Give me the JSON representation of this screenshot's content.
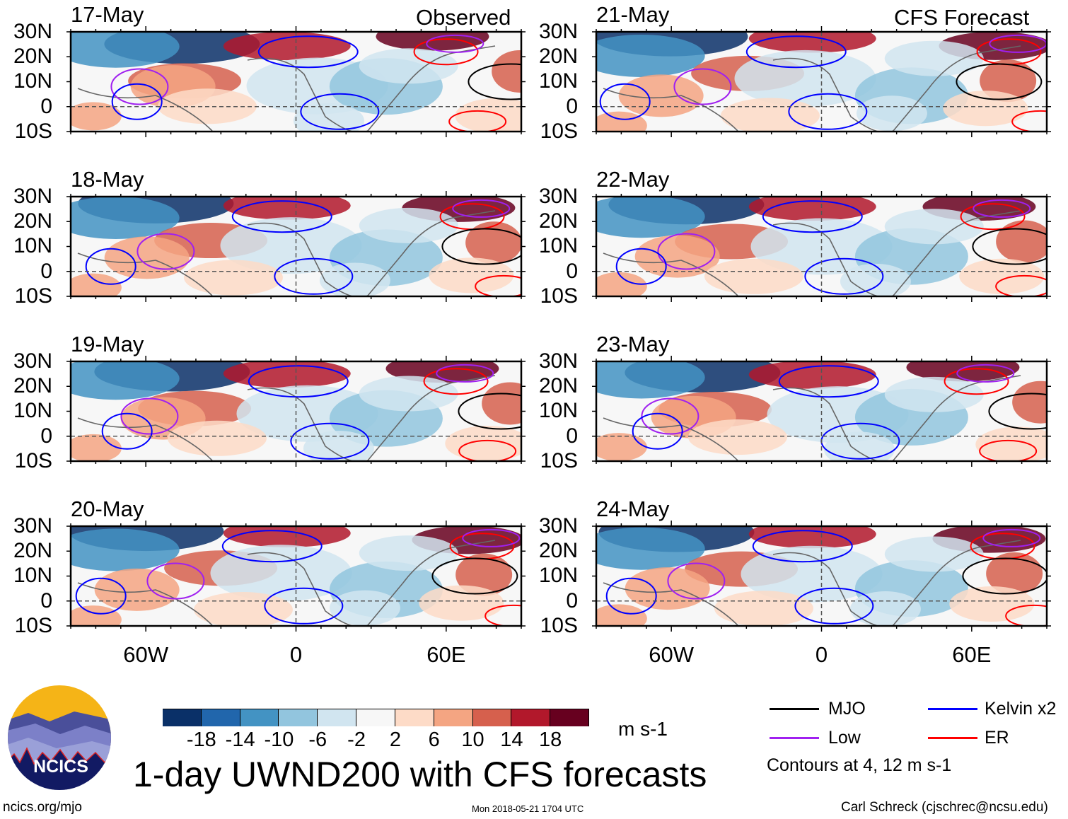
{
  "header": {
    "left_label": "Observed",
    "right_label": "CFS Forecast"
  },
  "panels": {
    "observed": [
      {
        "date": "17-May"
      },
      {
        "date": "18-May"
      },
      {
        "date": "19-May"
      },
      {
        "date": "20-May"
      }
    ],
    "forecast": [
      {
        "date": "21-May"
      },
      {
        "date": "22-May"
      },
      {
        "date": "23-May"
      },
      {
        "date": "24-May"
      }
    ]
  },
  "axes": {
    "lat_labels": [
      "30N",
      "20N",
      "10N",
      "0",
      "10S"
    ],
    "lon_labels": [
      "60W",
      "0",
      "60E"
    ],
    "lon_range": [
      -90,
      90
    ],
    "lat_range": [
      -10,
      30
    ]
  },
  "colorbar": {
    "unit": "m s-1",
    "labels": [
      "-18",
      "-14",
      "-10",
      "-6",
      "-2",
      "2",
      "6",
      "10",
      "14",
      "18"
    ],
    "colors": [
      "#0a3068",
      "#2166ac",
      "#4393c3",
      "#92c5de",
      "#d1e5f0",
      "#f7f7f7",
      "#fddbc7",
      "#f4a582",
      "#d6604d",
      "#b2182b",
      "#67001f"
    ]
  },
  "title": "1-day UWND200 with CFS forecasts",
  "legend": {
    "items": [
      {
        "label": "MJO",
        "color": "#000000"
      },
      {
        "label": "Kelvin x2",
        "color": "#0000ff"
      },
      {
        "label": "Low",
        "color": "#a020f0"
      },
      {
        "label": "ER",
        "color": "#ff0000"
      }
    ],
    "note": "Contours at 4, 12 m s-1"
  },
  "logo": {
    "text": "NCICS"
  },
  "footer": {
    "url": "ncics.org/mjo",
    "timestamp": "Mon 2018-05-21 1704 UTC",
    "author": "Carl Schreck (cjschrec@ncsu.edu)"
  }
}
